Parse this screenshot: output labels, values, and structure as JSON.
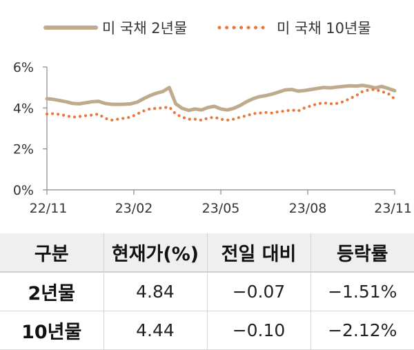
{
  "chart_data": {
    "type": "line",
    "series": [
      {
        "name": "미 국채 2년물",
        "color": "#bfaa8c",
        "style": "solid",
        "values": [
          4.45,
          4.42,
          4.36,
          4.3,
          4.22,
          4.2,
          4.25,
          4.3,
          4.32,
          4.22,
          4.18,
          4.17,
          4.18,
          4.2,
          4.28,
          4.45,
          4.6,
          4.72,
          4.8,
          5.0,
          4.2,
          3.98,
          3.88,
          3.95,
          3.9,
          4.02,
          4.08,
          3.95,
          3.9,
          3.98,
          4.12,
          4.3,
          4.45,
          4.55,
          4.6,
          4.68,
          4.78,
          4.88,
          4.9,
          4.82,
          4.85,
          4.9,
          4.95,
          5.0,
          4.98,
          5.02,
          5.05,
          5.08,
          5.07,
          5.1,
          5.05,
          4.98,
          5.05,
          4.95,
          4.84
        ]
      },
      {
        "name": "미 국채 10년물",
        "color": "#e8783c",
        "style": "dotted",
        "values": [
          3.7,
          3.72,
          3.68,
          3.62,
          3.55,
          3.58,
          3.62,
          3.65,
          3.7,
          3.5,
          3.4,
          3.45,
          3.5,
          3.55,
          3.7,
          3.85,
          3.95,
          3.98,
          4.0,
          4.05,
          3.7,
          3.55,
          3.45,
          3.45,
          3.4,
          3.5,
          3.55,
          3.45,
          3.4,
          3.45,
          3.55,
          3.62,
          3.72,
          3.75,
          3.78,
          3.75,
          3.82,
          3.85,
          3.9,
          3.85,
          4.0,
          4.1,
          4.2,
          4.25,
          4.2,
          4.22,
          4.3,
          4.45,
          4.6,
          4.8,
          4.88,
          4.9,
          4.8,
          4.7,
          4.44
        ]
      }
    ],
    "x_ticks": [
      "22/11",
      "23/02",
      "23/05",
      "23/08",
      "23/11"
    ],
    "y_ticks": [
      "0%",
      "2%",
      "4%",
      "6%"
    ],
    "ylim": [
      0,
      6
    ],
    "legend_position": "top",
    "grid": false
  },
  "table": {
    "headers": [
      "구분",
      "현재가(%)",
      "전일 대비",
      "등락률"
    ],
    "rows": [
      [
        "2년물",
        "4.84",
        "−0.07",
        "−1.51%"
      ],
      [
        "10년물",
        "4.44",
        "−0.10",
        "−2.12%"
      ]
    ]
  }
}
